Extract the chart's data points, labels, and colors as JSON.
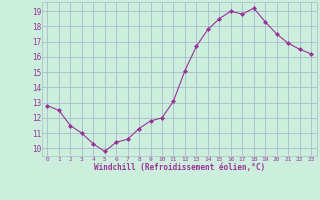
{
  "x": [
    0,
    1,
    2,
    3,
    4,
    5,
    6,
    7,
    8,
    9,
    10,
    11,
    12,
    13,
    14,
    15,
    16,
    17,
    18,
    19,
    20,
    21,
    22,
    23
  ],
  "y": [
    12.8,
    12.5,
    11.5,
    11.0,
    10.3,
    9.8,
    10.4,
    10.6,
    11.3,
    11.8,
    12.0,
    13.1,
    15.1,
    16.7,
    17.8,
    18.5,
    19.0,
    18.8,
    19.2,
    18.3,
    17.5,
    16.9,
    16.5,
    16.2
  ],
  "line_color": "#993399",
  "marker": "D",
  "marker_size": 2.0,
  "bg_color": "#cceedd",
  "grid_color": "#aabbcc",
  "xlabel": "Windchill (Refroidissement éolien,°C)",
  "xlabel_color": "#993399",
  "tick_color": "#993399",
  "ylim": [
    9.5,
    19.6
  ],
  "xlim": [
    -0.5,
    23.5
  ],
  "yticks": [
    10,
    11,
    12,
    13,
    14,
    15,
    16,
    17,
    18,
    19
  ],
  "xticks": [
    0,
    1,
    2,
    3,
    4,
    5,
    6,
    7,
    8,
    9,
    10,
    11,
    12,
    13,
    14,
    15,
    16,
    17,
    18,
    19,
    20,
    21,
    22,
    23
  ]
}
